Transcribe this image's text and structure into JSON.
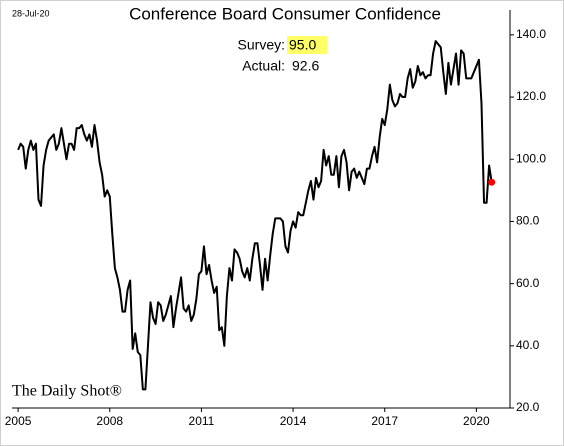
{
  "chart_data": {
    "type": "line",
    "title": "Conference Board Consumer Confidence",
    "date": "28-Jul-20",
    "watermark": "The Daily Shot®",
    "annotations": {
      "survey": {
        "label": "Survey:",
        "value": {
          "value": 95,
          "label": "95.0"
        },
        "highlight": "#ffff66"
      },
      "actual": {
        "label": "Actual:",
        "value": 92.6
      }
    },
    "xlim": [
      2004.8,
      2021.1
    ],
    "xticks": [
      2005,
      2008,
      2011,
      2014,
      2017,
      2020
    ],
    "ylim": [
      20,
      148
    ],
    "yticks": [
      {
        "value": 20,
        "label": "20.0"
      },
      {
        "value": 40,
        "label": "40.0"
      },
      {
        "value": 60,
        "label": "60.0"
      },
      {
        "value": 80,
        "label": "80.0"
      },
      {
        "value": 100,
        "label": "100.0"
      },
      {
        "value": 120,
        "label": "120.0"
      },
      {
        "value": 140,
        "label": "140.0"
      }
    ],
    "last_point_color": "#ff0000",
    "x": [
      2005,
      2005.083,
      2005.167,
      2005.25,
      2005.333,
      2005.417,
      2005.5,
      2005.583,
      2005.667,
      2005.75,
      2005.833,
      2005.917,
      2006,
      2006.083,
      2006.167,
      2006.25,
      2006.333,
      2006.417,
      2006.5,
      2006.583,
      2006.667,
      2006.75,
      2006.833,
      2006.917,
      2007,
      2007.083,
      2007.167,
      2007.25,
      2007.333,
      2007.417,
      2007.5,
      2007.583,
      2007.667,
      2007.75,
      2007.833,
      2007.917,
      2008,
      2008.083,
      2008.167,
      2008.25,
      2008.333,
      2008.417,
      2008.5,
      2008.583,
      2008.667,
      2008.75,
      2008.833,
      2008.917,
      2009,
      2009.083,
      2009.167,
      2009.25,
      2009.333,
      2009.417,
      2009.5,
      2009.583,
      2009.667,
      2009.75,
      2009.833,
      2009.917,
      2010,
      2010.083,
      2010.167,
      2010.25,
      2010.333,
      2010.417,
      2010.5,
      2010.583,
      2010.667,
      2010.75,
      2010.833,
      2010.917,
      2011,
      2011.083,
      2011.167,
      2011.25,
      2011.333,
      2011.417,
      2011.5,
      2011.583,
      2011.667,
      2011.75,
      2011.833,
      2011.917,
      2012,
      2012.083,
      2012.167,
      2012.25,
      2012.333,
      2012.417,
      2012.5,
      2012.583,
      2012.667,
      2012.75,
      2012.833,
      2012.917,
      2013,
      2013.083,
      2013.167,
      2013.25,
      2013.333,
      2013.417,
      2013.5,
      2013.583,
      2013.667,
      2013.75,
      2013.833,
      2013.917,
      2014,
      2014.083,
      2014.167,
      2014.25,
      2014.333,
      2014.417,
      2014.5,
      2014.583,
      2014.667,
      2014.75,
      2014.833,
      2014.917,
      2015,
      2015.083,
      2015.167,
      2015.25,
      2015.333,
      2015.417,
      2015.5,
      2015.583,
      2015.667,
      2015.75,
      2015.833,
      2015.917,
      2016,
      2016.083,
      2016.167,
      2016.25,
      2016.333,
      2016.417,
      2016.5,
      2016.583,
      2016.667,
      2016.75,
      2016.833,
      2016.917,
      2017,
      2017.083,
      2017.167,
      2017.25,
      2017.333,
      2017.417,
      2017.5,
      2017.583,
      2017.667,
      2017.75,
      2017.833,
      2017.917,
      2018,
      2018.083,
      2018.167,
      2018.25,
      2018.333,
      2018.417,
      2018.5,
      2018.583,
      2018.667,
      2018.75,
      2018.833,
      2018.917,
      2019,
      2019.083,
      2019.167,
      2019.25,
      2019.333,
      2019.417,
      2019.5,
      2019.583,
      2019.667,
      2019.75,
      2019.833,
      2019.917,
      2020,
      2020.083,
      2020.167,
      2020.25,
      2020.333,
      2020.417,
      2020.5
    ],
    "series": [
      {
        "color": "#000000",
        "values": [
          103,
          105,
          104,
          97,
          103,
          106,
          103,
          105,
          87,
          85,
          98,
          103,
          106,
          107,
          108,
          103,
          105,
          110,
          105,
          100,
          105,
          105,
          103,
          110,
          110,
          111,
          108,
          106,
          108,
          104,
          111,
          106,
          99,
          95,
          88,
          90,
          88,
          76,
          65,
          62,
          58,
          51,
          51,
          58,
          61,
          39,
          44,
          38,
          37,
          26,
          26,
          40,
          54,
          49,
          47,
          54,
          53,
          48,
          50,
          53,
          56,
          46,
          52,
          57,
          62,
          52,
          51,
          53,
          48,
          50,
          55,
          63,
          64,
          72,
          63,
          66,
          61,
          57,
          59,
          45,
          46,
          40,
          56,
          65,
          61,
          71,
          70,
          68,
          64,
          62,
          65,
          61,
          68,
          73,
          73,
          66,
          58,
          68,
          61,
          69,
          76,
          81,
          81,
          81,
          80,
          72,
          70,
          77,
          80,
          78,
          83,
          82,
          82,
          86,
          90,
          93,
          87,
          94,
          91,
          93,
          103,
          98,
          101,
          95,
          95,
          101,
          91,
          101,
          103,
          99,
          90,
          96,
          97,
          94,
          96,
          94,
          92,
          97,
          97,
          101,
          104,
          99,
          107,
          113,
          111,
          116,
          124,
          119,
          117,
          118,
          121,
          120,
          120,
          126,
          129,
          123,
          125,
          130,
          127,
          128,
          126,
          127,
          127,
          134,
          138,
          137,
          136,
          128,
          121,
          131,
          124,
          129,
          134,
          124,
          135,
          134,
          126,
          126,
          126,
          128,
          130,
          132,
          118,
          86,
          86,
          98,
          92.6
        ]
      }
    ]
  }
}
